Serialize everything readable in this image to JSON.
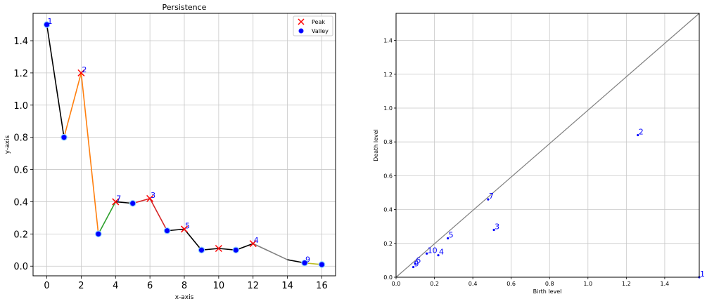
{
  "chart_data": [
    {
      "type": "line",
      "title": "Persistence",
      "xlabel": "x-axis",
      "ylabel": "y-axis",
      "xlim": [
        -0.8,
        16.8
      ],
      "ylim": [
        -0.06,
        1.57
      ],
      "xticks": [
        0,
        2,
        4,
        6,
        8,
        10,
        12,
        14,
        16
      ],
      "yticks": [
        0.0,
        0.2,
        0.4,
        0.6,
        0.8,
        1.0,
        1.2,
        1.4
      ],
      "grid": true,
      "legend_position": "top-right",
      "legend": [
        {
          "label": "Peak",
          "marker": "x",
          "color": "#ff0000"
        },
        {
          "label": "Valley",
          "marker": "o",
          "color": "#0000ff"
        }
      ],
      "series": [
        {
          "x": [
            0,
            1,
            2,
            3,
            4,
            5,
            6,
            7,
            8,
            9,
            10,
            11,
            12,
            13,
            14,
            15,
            16
          ],
          "y": [
            1.5,
            0.8,
            1.2,
            0.2,
            0.4,
            0.39,
            0.42,
            0.22,
            0.23,
            0.1,
            0.11,
            0.1,
            0.14,
            0.09,
            0.04,
            0.02,
            0.01
          ]
        }
      ],
      "segments": [
        {
          "x": [
            0,
            1
          ],
          "y": [
            1.5,
            0.8
          ],
          "color": "#000000"
        },
        {
          "x": [
            1,
            2,
            3
          ],
          "y": [
            0.8,
            1.2,
            0.2
          ],
          "color": "#ff7f0e"
        },
        {
          "x": [
            3,
            4
          ],
          "y": [
            0.2,
            0.4
          ],
          "color": "#2ca02c"
        },
        {
          "x": [
            4,
            5
          ],
          "y": [
            0.4,
            0.39
          ],
          "color": "#000000"
        },
        {
          "x": [
            5,
            6,
            7
          ],
          "y": [
            0.39,
            0.42,
            0.22
          ],
          "color": "#d62728"
        },
        {
          "x": [
            7,
            8,
            9,
            10,
            11,
            12
          ],
          "y": [
            0.22,
            0.23,
            0.1,
            0.11,
            0.1,
            0.14
          ],
          "color": "#000000"
        },
        {
          "x": [
            12,
            13,
            14
          ],
          "y": [
            0.14,
            0.09,
            0.04
          ],
          "color": "#7f7f7f"
        },
        {
          "x": [
            14,
            15
          ],
          "y": [
            0.04,
            0.02
          ],
          "color": "#000000"
        },
        {
          "x": [
            15,
            16
          ],
          "y": [
            0.02,
            0.01
          ],
          "color": "#bcbd22"
        }
      ],
      "valleys": [
        {
          "x": 0,
          "y": 1.5
        },
        {
          "x": 1,
          "y": 0.8
        },
        {
          "x": 3,
          "y": 0.2
        },
        {
          "x": 5,
          "y": 0.39
        },
        {
          "x": 7,
          "y": 0.22
        },
        {
          "x": 9,
          "y": 0.1
        },
        {
          "x": 11,
          "y": 0.1
        },
        {
          "x": 15,
          "y": 0.02
        },
        {
          "x": 16,
          "y": 0.01
        }
      ],
      "peaks": [
        {
          "x": 2,
          "y": 1.2
        },
        {
          "x": 4,
          "y": 0.4
        },
        {
          "x": 6,
          "y": 0.42
        },
        {
          "x": 8,
          "y": 0.23
        },
        {
          "x": 10,
          "y": 0.11
        },
        {
          "x": 12,
          "y": 0.14
        }
      ],
      "annotations": [
        {
          "text": "1",
          "x": 0,
          "y": 1.5
        },
        {
          "text": "2",
          "x": 2,
          "y": 1.2
        },
        {
          "text": "7",
          "x": 4,
          "y": 0.4
        },
        {
          "text": "3",
          "x": 6,
          "y": 0.42
        },
        {
          "text": "5",
          "x": 8,
          "y": 0.23
        },
        {
          "text": "4",
          "x": 12,
          "y": 0.14
        },
        {
          "text": "9",
          "x": 15,
          "y": 0.02
        }
      ]
    },
    {
      "type": "scatter",
      "title": "",
      "xlabel": "Birth level",
      "ylabel": "Death level",
      "xlim": [
        0,
        1.58
      ],
      "ylim": [
        0,
        1.56
      ],
      "xticks": [
        0.0,
        0.2,
        0.4,
        0.6,
        0.8,
        1.0,
        1.2,
        1.4
      ],
      "yticks": [
        0.0,
        0.2,
        0.4,
        0.6,
        0.8,
        1.0,
        1.2,
        1.4
      ],
      "grid": true,
      "diagonal": {
        "from": [
          0,
          0
        ],
        "to": [
          1.58,
          1.56
        ],
        "color": "#808080"
      },
      "points": [
        {
          "label": "1",
          "x": 1.58,
          "y": 0.0
        },
        {
          "label": "2",
          "x": 1.26,
          "y": 0.84
        },
        {
          "label": "3",
          "x": 0.51,
          "y": 0.28
        },
        {
          "label": "4",
          "x": 0.22,
          "y": 0.13
        },
        {
          "label": "5",
          "x": 0.27,
          "y": 0.23
        },
        {
          "label": "6",
          "x": 0.1,
          "y": 0.08
        },
        {
          "label": "7",
          "x": 0.48,
          "y": 0.46
        },
        {
          "label": "9",
          "x": 0.09,
          "y": 0.06
        },
        {
          "label": "10",
          "x": 0.16,
          "y": 0.14
        }
      ]
    }
  ]
}
